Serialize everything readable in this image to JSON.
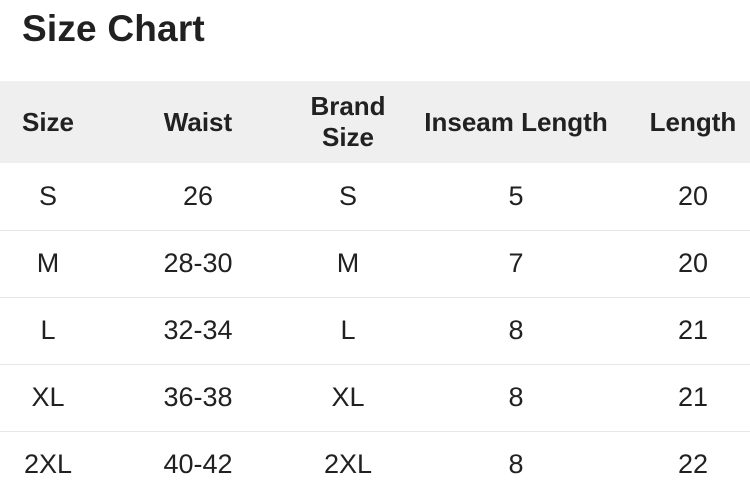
{
  "page": {
    "title": "Size Chart"
  },
  "table": {
    "columns": [
      "Size",
      "Waist",
      "Brand Size",
      "Inseam Length",
      "Length"
    ],
    "rows": [
      [
        "S",
        "26",
        "S",
        "5",
        "20"
      ],
      [
        "M",
        "28-30",
        "M",
        "7",
        "20"
      ],
      [
        "L",
        "32-34",
        "L",
        "8",
        "21"
      ],
      [
        "XL",
        "36-38",
        "XL",
        "8",
        "21"
      ],
      [
        "2XL",
        "40-42",
        "2XL",
        "8",
        "22"
      ]
    ]
  },
  "colors": {
    "header_bg": "#efefef",
    "text": "#212121",
    "divider": "#e7e7e7",
    "page_bg": "#ffffff"
  }
}
